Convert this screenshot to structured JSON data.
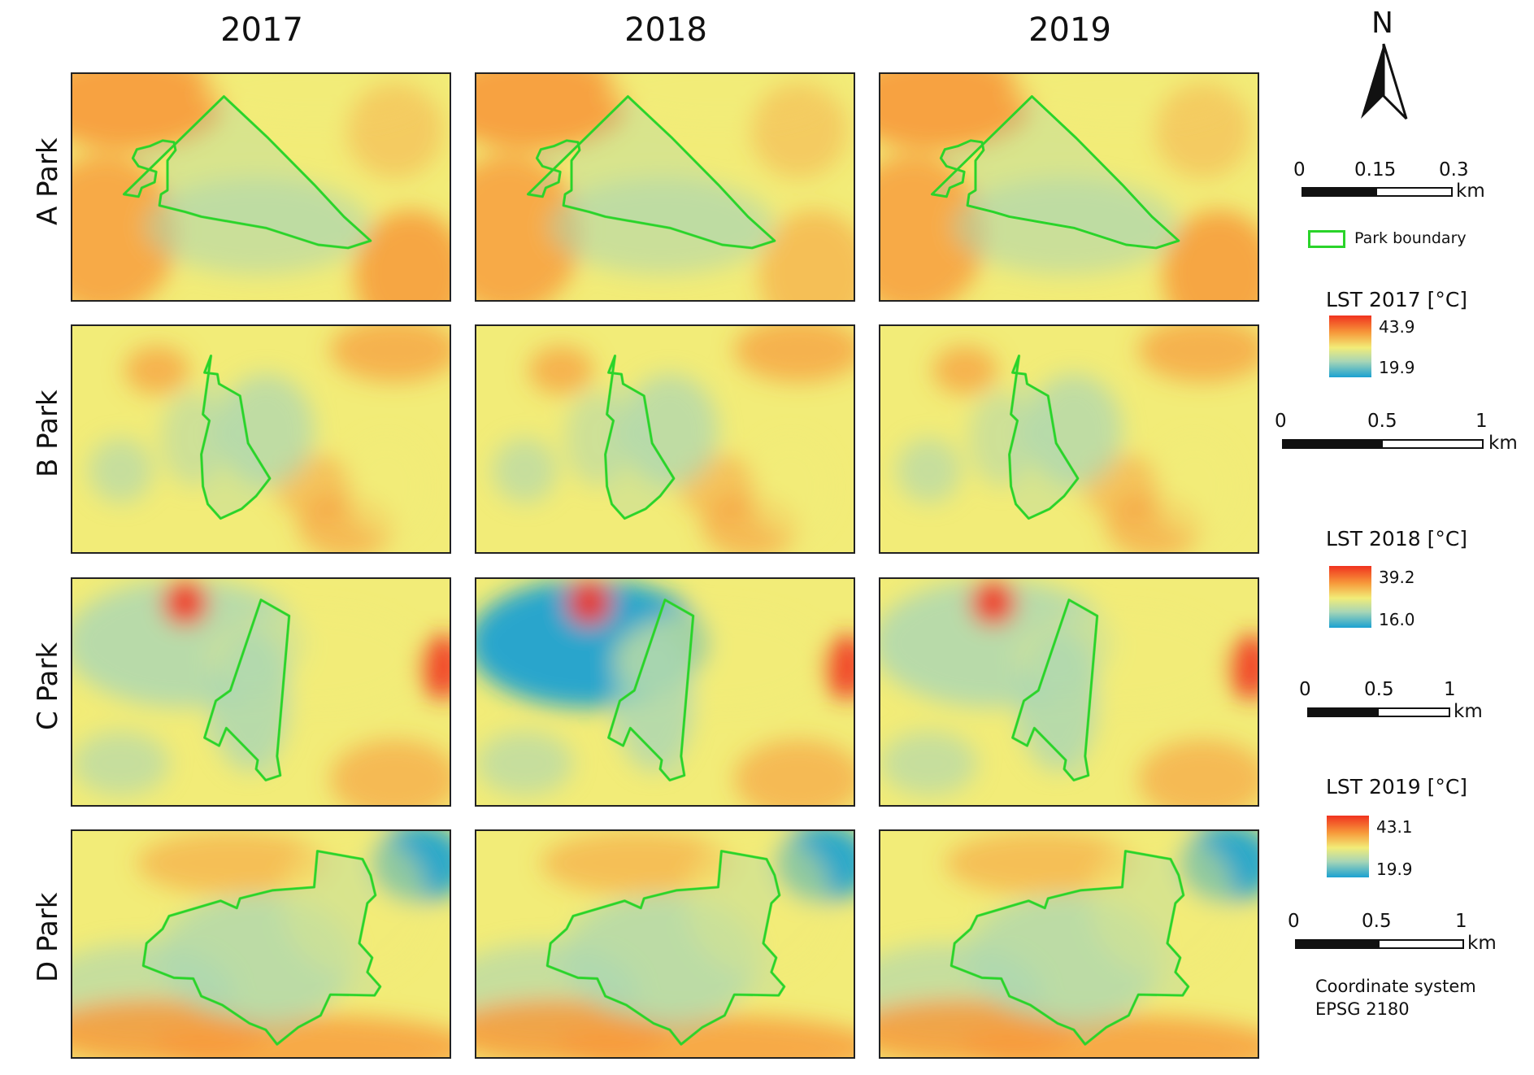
{
  "years": [
    "2017",
    "2018",
    "2019"
  ],
  "rows": [
    "A Park",
    "B Park",
    "C Park",
    "D Park"
  ],
  "north_label": "N",
  "legend": {
    "park_boundary": "Park boundary",
    "boundary_color": "#2ad42a",
    "lst": [
      {
        "title": "LST 2017 [°C]",
        "max": "43.9",
        "min": "19.9"
      },
      {
        "title": "LST 2018 [°C]",
        "max": "39.2",
        "min": "16.0"
      },
      {
        "title": "LST 2019 [°C]",
        "max": "43.1",
        "min": "19.9"
      }
    ],
    "scalebars": [
      {
        "labels": [
          "0",
          "0.15",
          "0.3"
        ],
        "unit": "km"
      },
      {
        "labels": [
          "0",
          "0.5",
          "1"
        ],
        "unit": "km"
      },
      {
        "labels": [
          "0",
          "0.5",
          "1"
        ],
        "unit": "km"
      },
      {
        "labels": [
          "0",
          "0.5",
          "1"
        ],
        "unit": "km"
      }
    ],
    "crs_line1": "Coordinate system",
    "crs_line2": "EPSG 2180"
  },
  "colors": {
    "hot": "#f0321e",
    "warm": "#f79a3b",
    "mid": "#f2ec78",
    "cool": "#a9d6b5",
    "cold": "#1aa1d1"
  }
}
